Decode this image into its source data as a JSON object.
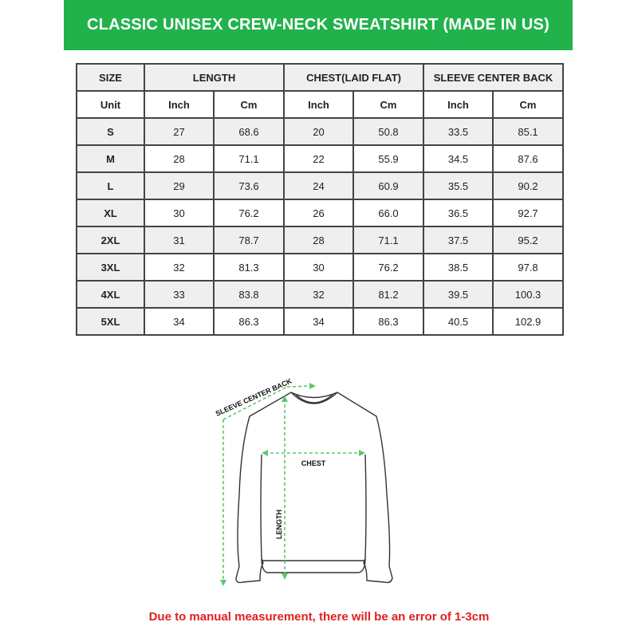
{
  "title": "CLASSIC UNISEX CREW-NECK SWEATSHIRT (MADE IN US)",
  "table": {
    "headers": [
      "SIZE",
      "LENGTH",
      "CHEST(LAID FLAT)",
      "SLEEVE CENTER BACK"
    ],
    "units": [
      "Unit",
      "Inch",
      "Cm",
      "Inch",
      "Cm",
      "Inch",
      "Cm"
    ],
    "rows": [
      [
        "S",
        "27",
        "68.6",
        "20",
        "50.8",
        "33.5",
        "85.1"
      ],
      [
        "M",
        "28",
        "71.1",
        "22",
        "55.9",
        "34.5",
        "87.6"
      ],
      [
        "L",
        "29",
        "73.6",
        "24",
        "60.9",
        "35.5",
        "90.2"
      ],
      [
        "XL",
        "30",
        "76.2",
        "26",
        "66.0",
        "36.5",
        "92.7"
      ],
      [
        "2XL",
        "31",
        "78.7",
        "28",
        "71.1",
        "37.5",
        "95.2"
      ],
      [
        "3XL",
        "32",
        "81.3",
        "30",
        "76.2",
        "38.5",
        "97.8"
      ],
      [
        "4XL",
        "33",
        "83.8",
        "32",
        "81.2",
        "39.5",
        "100.3"
      ],
      [
        "5XL",
        "34",
        "86.3",
        "34",
        "86.3",
        "40.5",
        "102.9"
      ]
    ]
  },
  "diagram": {
    "sleeve_label": "SLEEVE CENTER BACK",
    "chest_label": "CHEST",
    "length_label": "LENGTH"
  },
  "note": "Due to manual measurement, there will be an error of 1-3cm",
  "colors": {
    "accent": "#22b24c",
    "note": "#e0201f",
    "measure_line": "#5cc86a"
  }
}
